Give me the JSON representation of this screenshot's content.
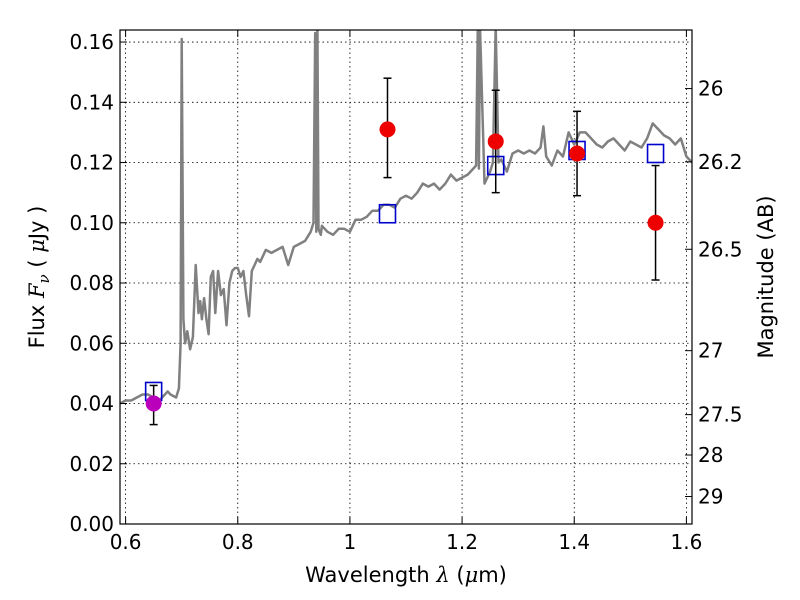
{
  "chart_data": {
    "type": "scatter",
    "title": "",
    "xlabel": "Wavelength  λ (μm)",
    "xlabel_parts": {
      "prefix": "Wavelength  ",
      "lambda": "λ",
      "open": " (",
      "mu": "μ",
      "unit": "m)"
    },
    "ylabel": "Flux  Fν  ( μJy )",
    "ylabel_parts": {
      "prefix": "Flux  ",
      "F": "F",
      "nu": "ν",
      "open": "  ( ",
      "mu": "μ",
      "unit": "Jy )"
    },
    "ylabel_right": "Magnitude (AB)",
    "xlim": [
      0.59,
      1.61
    ],
    "ylim": [
      0.0,
      0.164
    ],
    "grid": true,
    "x_ticks": [
      {
        "value": 0.6,
        "label": "0.6"
      },
      {
        "value": 0.8,
        "label": "0.8"
      },
      {
        "value": 1.0,
        "label": "1"
      },
      {
        "value": 1.2,
        "label": "1.2"
      },
      {
        "value": 1.4,
        "label": "1.4"
      },
      {
        "value": 1.6,
        "label": "1.6"
      }
    ],
    "y_ticks": [
      {
        "value": 0.0,
        "label": "0.00"
      },
      {
        "value": 0.02,
        "label": "0.02"
      },
      {
        "value": 0.04,
        "label": "0.04"
      },
      {
        "value": 0.06,
        "label": "0.06"
      },
      {
        "value": 0.08,
        "label": "0.08"
      },
      {
        "value": 0.1,
        "label": "0.10"
      },
      {
        "value": 0.12,
        "label": "0.12"
      },
      {
        "value": 0.14,
        "label": "0.14"
      },
      {
        "value": 0.16,
        "label": "0.16"
      }
    ],
    "y2_ticks": [
      {
        "value": 26.0,
        "label": "26"
      },
      {
        "value": 26.2,
        "label": "26.2"
      },
      {
        "value": 26.5,
        "label": "26.5"
      },
      {
        "value": 27.0,
        "label": "27"
      },
      {
        "value": 27.5,
        "label": "27.5"
      },
      {
        "value": 28.0,
        "label": "28"
      },
      {
        "value": 29.0,
        "label": "29"
      }
    ],
    "series": [
      {
        "type": "line",
        "color": "#808080",
        "x": [
          0.59,
          0.6,
          0.61,
          0.62,
          0.63,
          0.64,
          0.65,
          0.66,
          0.67,
          0.675,
          0.68,
          0.69,
          0.695,
          0.698,
          0.7,
          0.703,
          0.706,
          0.71,
          0.715,
          0.72,
          0.725,
          0.73,
          0.733,
          0.736,
          0.74,
          0.744,
          0.748,
          0.752,
          0.756,
          0.76,
          0.765,
          0.77,
          0.775,
          0.78,
          0.785,
          0.79,
          0.795,
          0.8,
          0.805,
          0.81,
          0.815,
          0.82,
          0.825,
          0.83,
          0.835,
          0.84,
          0.85,
          0.86,
          0.87,
          0.88,
          0.89,
          0.9,
          0.91,
          0.92,
          0.93,
          0.935,
          0.938,
          0.94,
          0.942,
          0.944,
          0.946,
          0.948,
          0.95,
          0.955,
          0.96,
          0.97,
          0.98,
          0.99,
          1.0,
          1.01,
          1.02,
          1.03,
          1.04,
          1.05,
          1.06,
          1.07,
          1.08,
          1.09,
          1.1,
          1.11,
          1.12,
          1.13,
          1.14,
          1.15,
          1.16,
          1.17,
          1.18,
          1.19,
          1.2,
          1.21,
          1.22,
          1.225,
          1.228,
          1.23,
          1.232,
          1.24,
          1.25,
          1.255,
          1.26,
          1.265,
          1.27,
          1.28,
          1.29,
          1.3,
          1.31,
          1.32,
          1.33,
          1.34,
          1.345,
          1.35,
          1.36,
          1.37,
          1.38,
          1.39,
          1.4,
          1.41,
          1.42,
          1.43,
          1.44,
          1.45,
          1.46,
          1.47,
          1.48,
          1.49,
          1.5,
          1.51,
          1.52,
          1.53,
          1.54,
          1.55,
          1.56,
          1.57,
          1.58,
          1.59,
          1.6,
          1.61
        ],
        "values": [
          0.04,
          0.041,
          0.041,
          0.042,
          0.043,
          0.043,
          0.042,
          0.041,
          0.043,
          0.044,
          0.043,
          0.042,
          0.045,
          0.06,
          0.161,
          0.068,
          0.06,
          0.064,
          0.058,
          0.062,
          0.086,
          0.07,
          0.074,
          0.068,
          0.075,
          0.068,
          0.063,
          0.082,
          0.084,
          0.07,
          0.084,
          0.076,
          0.078,
          0.066,
          0.08,
          0.084,
          0.085,
          0.085,
          0.082,
          0.084,
          0.076,
          0.069,
          0.084,
          0.086,
          0.088,
          0.087,
          0.091,
          0.09,
          0.091,
          0.092,
          0.086,
          0.092,
          0.093,
          0.094,
          0.097,
          0.1,
          0.163,
          0.097,
          0.165,
          0.098,
          0.097,
          0.096,
          0.099,
          0.098,
          0.097,
          0.096,
          0.098,
          0.098,
          0.097,
          0.101,
          0.101,
          0.102,
          0.104,
          0.104,
          0.106,
          0.106,
          0.105,
          0.108,
          0.109,
          0.108,
          0.11,
          0.113,
          0.112,
          0.113,
          0.111,
          0.113,
          0.116,
          0.114,
          0.115,
          0.116,
          0.118,
          0.119,
          0.165,
          0.118,
          0.165,
          0.113,
          0.117,
          0.12,
          0.165,
          0.12,
          0.121,
          0.117,
          0.123,
          0.124,
          0.123,
          0.124,
          0.123,
          0.125,
          0.132,
          0.122,
          0.119,
          0.124,
          0.122,
          0.13,
          0.126,
          0.13,
          0.13,
          0.128,
          0.126,
          0.125,
          0.127,
          0.128,
          0.126,
          0.124,
          0.127,
          0.126,
          0.125,
          0.128,
          0.133,
          0.131,
          0.129,
          0.128,
          0.126,
          0.128,
          0.122,
          0.12
        ]
      },
      {
        "type": "markers-square",
        "color": "#0000cc",
        "x": [
          0.65,
          1.067,
          1.26,
          1.405,
          1.545
        ],
        "values": [
          0.044,
          0.103,
          0.119,
          0.124,
          0.123
        ]
      },
      {
        "type": "markers-circle-errorbar",
        "color": "#ee0000",
        "x": [
          1.067,
          1.26,
          1.405,
          1.545
        ],
        "values": [
          0.131,
          0.127,
          0.123,
          0.1
        ],
        "err_low": [
          0.115,
          0.11,
          0.109,
          0.081
        ],
        "err_high": [
          0.148,
          0.144,
          0.137,
          0.119
        ]
      },
      {
        "type": "markers-circle-errorbar",
        "color": "#bb00bb",
        "x": [
          0.65
        ],
        "values": [
          0.04
        ],
        "err_low": [
          0.033
        ],
        "err_high": [
          0.046
        ]
      }
    ]
  }
}
